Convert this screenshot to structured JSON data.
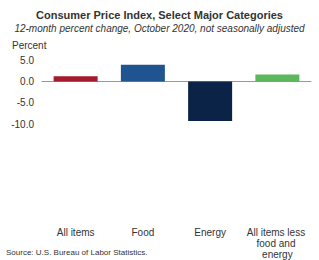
{
  "chart_data": {
    "type": "bar",
    "title": "Consumer Price Index, Select Major Categories",
    "subtitle": "12-month percent change, October 2020, not seasonally adjusted",
    "y_label": "Percent",
    "source": "Source: U.S. Bureau of Labor Statistics.",
    "categories": [
      "All items",
      "Food",
      "Energy",
      "All items less food and energy"
    ],
    "values": [
      1.2,
      3.9,
      -9.2,
      1.6
    ],
    "colors": [
      "#a6192e",
      "#1f5490",
      "#0c2348",
      "#5cb85c"
    ],
    "ylim": [
      -10,
      5
    ],
    "yticks": [
      {
        "value": -10,
        "label": "-10.0"
      },
      {
        "value": -5,
        "label": "-5.0"
      },
      {
        "value": 0,
        "label": "0.0"
      },
      {
        "value": 5,
        "label": "5.0"
      }
    ],
    "grid": false
  }
}
